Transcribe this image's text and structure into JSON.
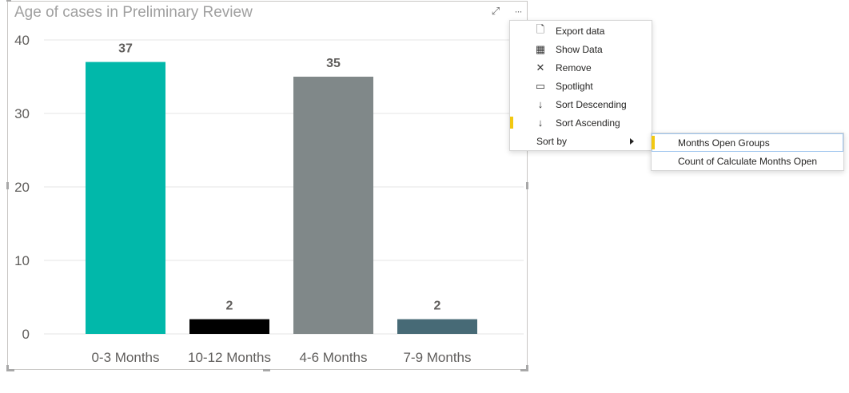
{
  "visual": {
    "title": "Age of cases in Preliminary Review",
    "header_icons": [
      {
        "name": "focus-mode-icon",
        "glyph": "⤢"
      },
      {
        "name": "more-options-icon",
        "glyph": "···"
      }
    ]
  },
  "chart_data": {
    "type": "bar",
    "title": "Age of cases in Preliminary Review",
    "categories": [
      "0-3 Months",
      "10-12 Months",
      "4-6 Months",
      "7-9 Months"
    ],
    "values": [
      37,
      2,
      35,
      2
    ],
    "colors": [
      "#01b8aa",
      "#000000",
      "#808889",
      "#476a76"
    ],
    "xlabel": "",
    "ylabel": "",
    "ylim": [
      0,
      40
    ],
    "yticks": [
      0,
      10,
      20,
      30,
      40
    ],
    "grid": true,
    "data_labels": true,
    "legend": "none"
  },
  "context_menu": {
    "items": [
      {
        "label": "Export data",
        "icon": "export-data-icon",
        "glyph": "🗋"
      },
      {
        "label": "Show Data",
        "icon": "show-data-icon",
        "glyph": "▦"
      },
      {
        "label": "Remove",
        "icon": "remove-icon",
        "glyph": "✕"
      },
      {
        "label": "Spotlight",
        "icon": "spotlight-icon",
        "glyph": "▭"
      },
      {
        "label": "Sort Descending",
        "icon": "sort-descending-icon",
        "glyph": "↓"
      },
      {
        "label": "Sort Ascending",
        "icon": "sort-ascending-icon",
        "glyph": "↓",
        "selected": true
      },
      {
        "label": "Sort by",
        "icon": "",
        "glyph": "",
        "submenu": true
      }
    ]
  },
  "submenu": {
    "items": [
      {
        "label": "Months Open Groups",
        "selected": true
      },
      {
        "label": "Count of Calculate Months Open",
        "selected": false
      }
    ]
  },
  "accent_color": "#f2c811"
}
